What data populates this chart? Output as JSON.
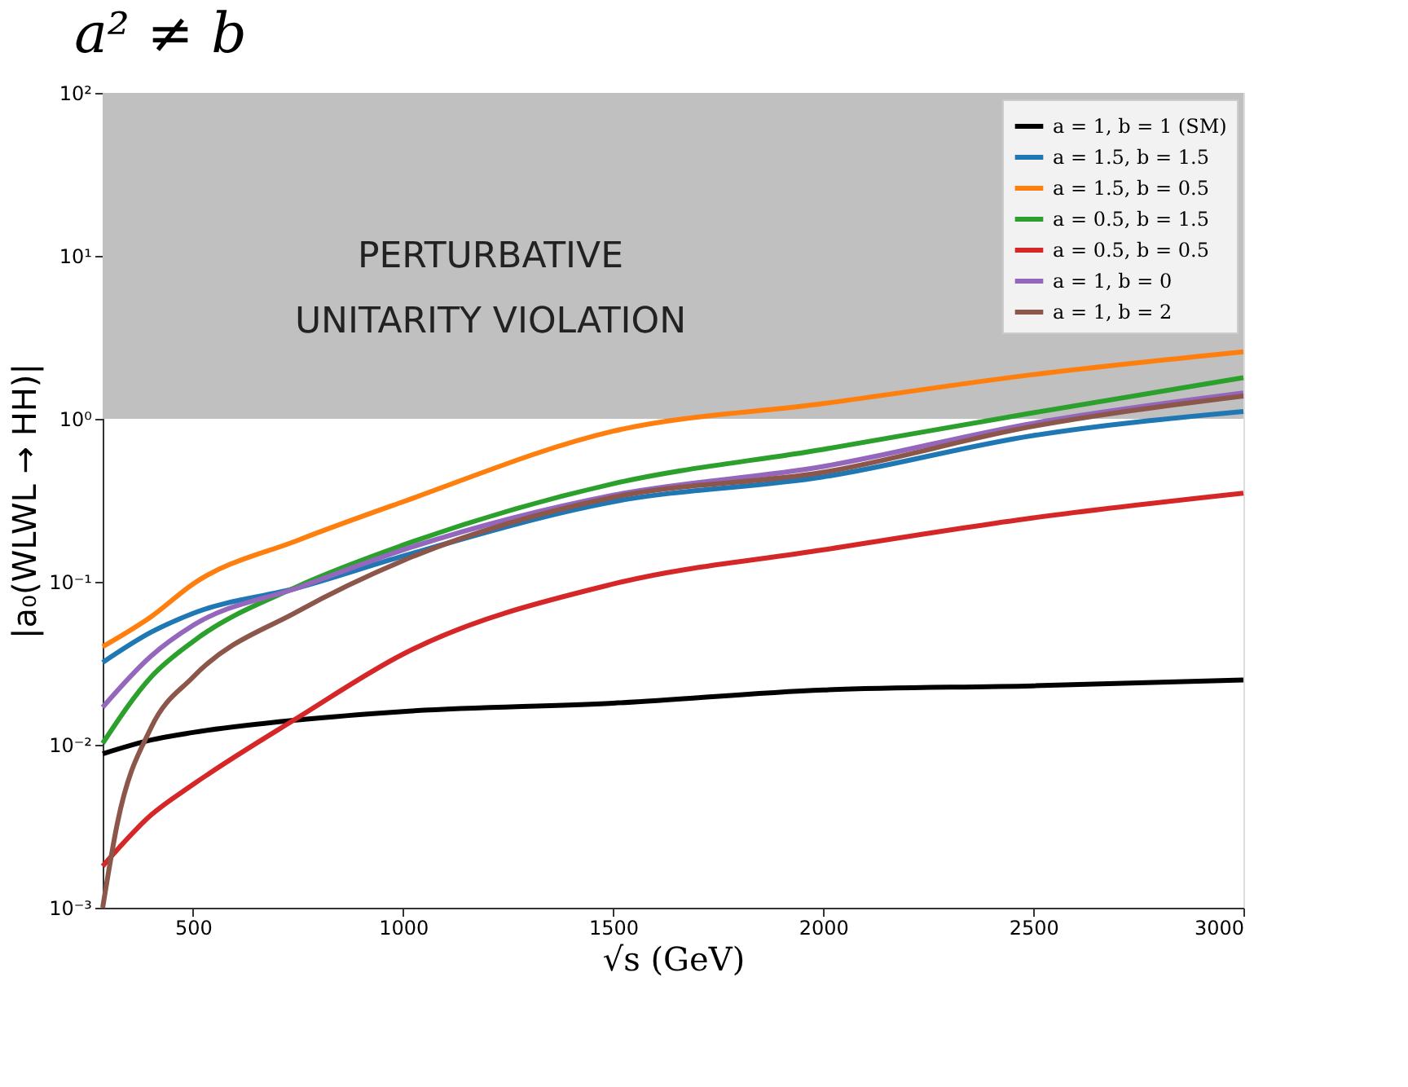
{
  "chart_data": {
    "type": "line",
    "title": "a² ≠ b",
    "xlabel": "√s (GeV)",
    "ylabel": "|a₀(WLWL → HH)|",
    "xlim": [
      285,
      3000
    ],
    "xticks": [
      500,
      1000,
      1500,
      2000,
      2500,
      3000
    ],
    "ylim": [
      0.001,
      100
    ],
    "yticks": [
      {
        "value": 0.001,
        "label": "10⁻³"
      },
      {
        "value": 0.01,
        "label": "10⁻²"
      },
      {
        "value": 0.1,
        "label": "10⁻¹"
      },
      {
        "value": 1,
        "label": "10⁰"
      },
      {
        "value": 10,
        "label": "10¹"
      },
      {
        "value": 100,
        "label": "10²"
      }
    ],
    "log": "y",
    "grid": false,
    "legend": "top right",
    "line_style": "solid",
    "marker": "none",
    "bands": [
      {
        "axis": "y",
        "from": 1,
        "to": 100,
        "label": "PERTURBATIVE\nUNITARITY VIOLATION",
        "color": "#c0c0c0"
      }
    ],
    "series": [
      {
        "name": "a = 1, b = 1 (SM)",
        "color": "#000000",
        "x": [
          285,
          400,
          500,
          750,
          1000,
          1500,
          2000,
          2500,
          3000
        ],
        "values": [
          0.0088,
          0.0107,
          0.0119,
          0.0142,
          0.016,
          0.018,
          0.0217,
          0.023,
          0.025
        ]
      },
      {
        "name": "a = 1.5, b = 1.5",
        "color": "#1f77b4",
        "x": [
          285,
          400,
          500,
          750,
          1000,
          1500,
          2000,
          2500,
          3000
        ],
        "values": [
          0.032,
          0.049,
          0.064,
          0.092,
          0.144,
          0.31,
          0.44,
          0.79,
          1.11
        ]
      },
      {
        "name": "a = 1.5, b = 0.5",
        "color": "#ff7f0e",
        "x": [
          285,
          400,
          500,
          750,
          1000,
          1500,
          2000,
          2500,
          3000
        ],
        "values": [
          0.04,
          0.061,
          0.097,
          0.18,
          0.31,
          0.84,
          1.24,
          1.87,
          2.58
        ]
      },
      {
        "name": "a = 0.5, b = 1.5",
        "color": "#2ca02c",
        "x": [
          285,
          400,
          500,
          750,
          1000,
          1500,
          2000,
          2500,
          3000
        ],
        "values": [
          0.0102,
          0.026,
          0.043,
          0.094,
          0.168,
          0.4,
          0.65,
          1.09,
          1.79
        ]
      },
      {
        "name": "a = 0.5, b = 0.5",
        "color": "#d62728",
        "x": [
          285,
          400,
          500,
          750,
          1000,
          1500,
          2000,
          2500,
          3000
        ],
        "values": [
          0.0018,
          0.0037,
          0.0057,
          0.0147,
          0.036,
          0.097,
          0.157,
          0.247,
          0.35
        ]
      },
      {
        "name": "a = 1, b = 0",
        "color": "#9467bd",
        "x": [
          285,
          400,
          500,
          750,
          1000,
          1500,
          2000,
          2500,
          3000
        ],
        "values": [
          0.017,
          0.035,
          0.054,
          0.092,
          0.157,
          0.34,
          0.51,
          0.94,
          1.44
        ]
      },
      {
        "name": "a = 1, b = 2",
        "color": "#8c564b",
        "x": [
          285,
          320,
          400,
          500,
          750,
          1000,
          1500,
          2000,
          2500,
          3000
        ],
        "values": [
          0.001,
          0.0033,
          0.0127,
          0.026,
          0.066,
          0.135,
          0.33,
          0.47,
          0.9,
          1.38
        ]
      }
    ]
  }
}
